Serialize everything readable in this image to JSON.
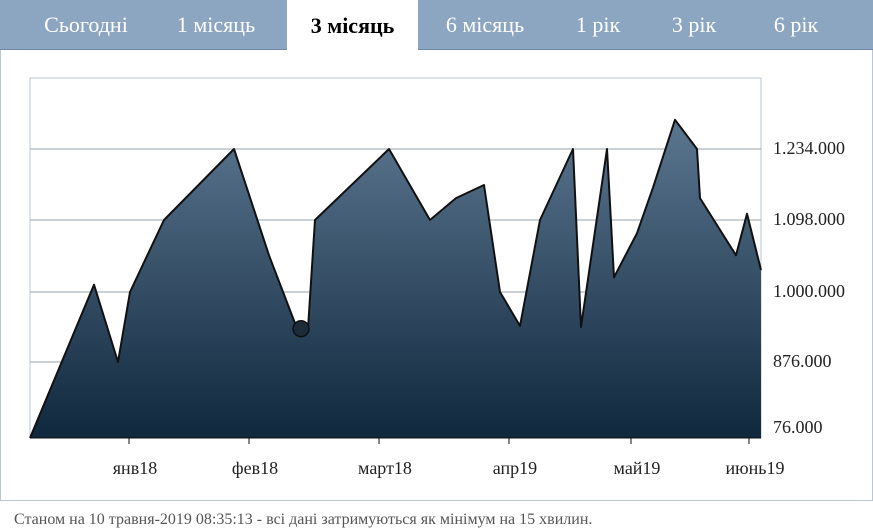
{
  "tabs": [
    {
      "label": "Сьогодні",
      "active": false
    },
    {
      "label": "1 місяць",
      "active": false
    },
    {
      "label": "3 місяць",
      "active": true
    },
    {
      "label": "6 місяць",
      "active": false
    },
    {
      "label": "1 рік",
      "active": false
    },
    {
      "label": "3 рік",
      "active": false
    },
    {
      "label": "6 рік",
      "active": false
    }
  ],
  "colors": {
    "tab_bar": "#8ca6c2",
    "area_top": "#5b7690",
    "area_bottom": "#10283d",
    "line": "#111111",
    "grid": "#9aa3ad"
  },
  "chart_data": {
    "type": "area",
    "title": "",
    "xlabel": "",
    "ylabel": "",
    "grid": true,
    "y_axis_position": "right",
    "y_ticks": [
      "1.234.000",
      "1.098.000",
      "1.000.000",
      "876.000",
      "76.000"
    ],
    "x_ticks": [
      "янв18",
      "фев18",
      "март18",
      "апр19",
      "май19",
      "июнь19"
    ],
    "series": [
      {
        "values": [
          76000,
          1010000,
          876000,
          1000000,
          1098000,
          1234000,
          1050000,
          940000,
          935000,
          1098000,
          1234000,
          1098000,
          1140000,
          1165000,
          1000000,
          940000,
          1098000,
          1234000,
          938000,
          1234000,
          1020000,
          1080000,
          1160000,
          1290000,
          1234000,
          1140000,
          1050000,
          1110000,
          1030000
        ]
      }
    ],
    "marker": {
      "point_index": 8,
      "value": 935000
    }
  },
  "footer": {
    "status_text": "Станом на 10 травня-2019 08:35:13 - всі дані затримуються як мінімум на 15 хвилин."
  }
}
